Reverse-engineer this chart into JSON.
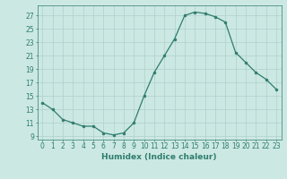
{
  "x": [
    0,
    1,
    2,
    3,
    4,
    5,
    6,
    7,
    8,
    9,
    10,
    11,
    12,
    13,
    14,
    15,
    16,
    17,
    18,
    19,
    20,
    21,
    22,
    23
  ],
  "y": [
    14,
    13,
    11.5,
    11,
    10.5,
    10.5,
    9.5,
    9.2,
    9.5,
    11,
    15,
    18.5,
    21,
    23.5,
    27,
    27.5,
    27.3,
    26.8,
    26,
    21.5,
    20,
    18.5,
    17.5,
    16
  ],
  "line_color": "#2e7d6e",
  "marker": "o",
  "marker_size": 2.0,
  "bg_color": "#cce8e3",
  "grid_color": "#b0d0cc",
  "xlabel": "Humidex (Indice chaleur)",
  "xlim": [
    -0.5,
    23.5
  ],
  "ylim": [
    8.5,
    28.5
  ],
  "yticks": [
    9,
    11,
    13,
    15,
    17,
    19,
    21,
    23,
    25,
    27
  ],
  "xticks": [
    0,
    1,
    2,
    3,
    4,
    5,
    6,
    7,
    8,
    9,
    10,
    11,
    12,
    13,
    14,
    15,
    16,
    17,
    18,
    19,
    20,
    21,
    22,
    23
  ],
  "xtick_labels": [
    "0",
    "1",
    "2",
    "3",
    "4",
    "5",
    "6",
    "7",
    "8",
    "9",
    "10",
    "11",
    "12",
    "13",
    "14",
    "15",
    "16",
    "17",
    "18",
    "19",
    "20",
    "21",
    "22",
    "23"
  ],
  "tick_color": "#2e7d6e",
  "label_fontsize": 6.5,
  "tick_fontsize": 5.5,
  "linewidth": 0.9
}
